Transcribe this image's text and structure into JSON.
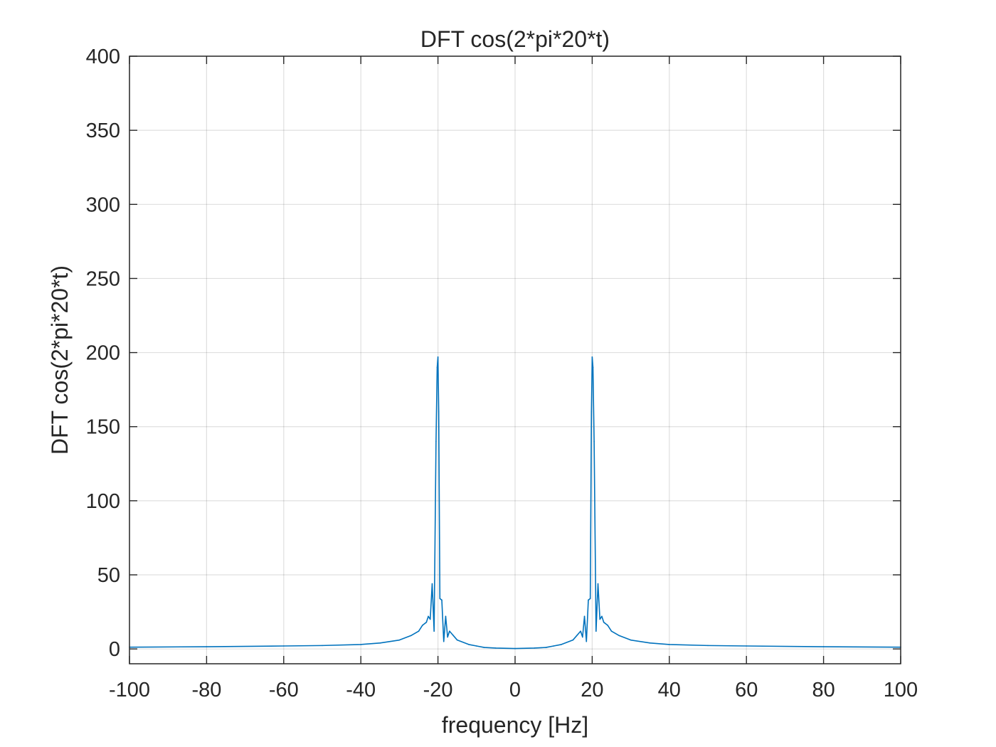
{
  "chart_data": {
    "type": "line",
    "title": "DFT cos(2*pi*20*t)",
    "xlabel": "frequency [Hz]",
    "ylabel": "DFT cos(2*pi*20*t)",
    "xlim": [
      -100,
      100
    ],
    "ylim": [
      -10,
      400
    ],
    "xticks": [
      -100,
      -80,
      -60,
      -40,
      -20,
      0,
      20,
      40,
      60,
      80,
      100
    ],
    "yticks": [
      0,
      50,
      100,
      150,
      200,
      250,
      300,
      350,
      400
    ],
    "xtick_labels": [
      "-100",
      "-80",
      "-60",
      "-40",
      "-20",
      "0",
      "20",
      "40",
      "60",
      "80",
      "100"
    ],
    "ytick_labels": [
      "0",
      "50",
      "100",
      "150",
      "200",
      "250",
      "300",
      "350",
      "400"
    ],
    "grid": true,
    "legend": "none",
    "series_color": "#0072BD",
    "series": [
      {
        "x": [
          -100,
          -80,
          -60,
          -50,
          -40,
          -35,
          -30,
          -27,
          -25,
          -24,
          -23,
          -22.5,
          -22,
          -21.5,
          -21,
          -20.5,
          -20.2,
          -20,
          -19.8,
          -19.5,
          -19,
          -18.5,
          -18,
          -17.5,
          -17,
          -16,
          -15,
          -12,
          -10,
          -8,
          -5,
          0,
          5,
          8,
          10,
          12,
          15,
          16,
          17,
          17.5,
          18,
          18.5,
          19,
          19.5,
          19.8,
          20,
          20.2,
          20.5,
          21,
          21.5,
          22,
          22.5,
          23,
          24,
          25,
          27,
          30,
          35,
          40,
          50,
          60,
          80,
          100
        ],
        "y": [
          1.2,
          1.5,
          2,
          2.3,
          3,
          4,
          6,
          9,
          12,
          16,
          18,
          22,
          20,
          44,
          12,
          140,
          190,
          197,
          160,
          34,
          33,
          5,
          22,
          8,
          12,
          9,
          6,
          3,
          2,
          1,
          0.6,
          0.3,
          0.6,
          1,
          2,
          3,
          6,
          9,
          12,
          8,
          22,
          5,
          33,
          34,
          160,
          197,
          190,
          140,
          12,
          44,
          20,
          22,
          18,
          16,
          12,
          9,
          6,
          4,
          3,
          2.3,
          2,
          1.5,
          1.2
        ]
      }
    ]
  }
}
